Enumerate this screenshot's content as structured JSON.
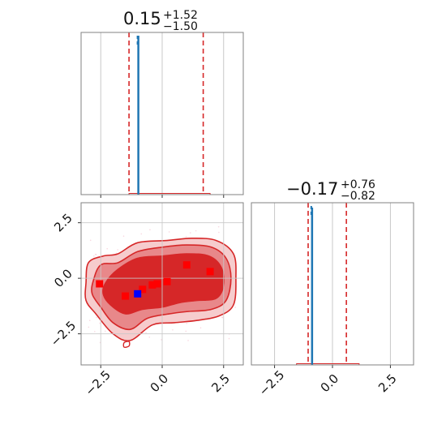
{
  "colors": {
    "truth": "#d62728",
    "median": "#1f77b4",
    "contour_dark": "#d62728",
    "contour_mid": "#e8888a",
    "contour_light": "#f6cccd",
    "best": "#0000ff"
  },
  "chart_data": [
    {
      "type": "histogram",
      "panel": "top-left",
      "title": {
        "value": "0.15",
        "upper": "+1.52",
        "lower": "−1.50"
      },
      "xlim": [
        -3.3,
        3.3
      ],
      "xticks": [
        -2.5,
        0.0,
        2.5
      ],
      "median_x": -0.97,
      "quantile_lines_x": [
        -1.35,
        1.67
      ],
      "red_hist_range": [
        -1.35,
        1.95
      ],
      "grid": true
    },
    {
      "type": "histogram",
      "panel": "bottom-right",
      "title": {
        "value": "−0.17",
        "upper": "+0.76",
        "lower": "−0.82"
      },
      "xlim": [
        -3.5,
        3.5
      ],
      "xticks": [
        -2.5,
        0.0,
        2.5
      ],
      "xtick_labels": [
        "−2.5",
        "0.0",
        "2.5"
      ],
      "median_x": -0.88,
      "quantile_lines_x": [
        -1.05,
        0.6
      ],
      "red_hist_range": [
        -1.55,
        1.15
      ],
      "grid": true
    },
    {
      "type": "scatter",
      "panel": "bottom-left",
      "xlim": [
        -3.3,
        3.3
      ],
      "ylim": [
        -3.9,
        3.4
      ],
      "xticks": [
        -2.5,
        0.0,
        2.5
      ],
      "yticks": [
        -2.5,
        0.0,
        2.5
      ],
      "xtick_labels": [
        "−2.5",
        "0.0",
        "2.5"
      ],
      "ytick_labels": [
        "−2.5",
        "0.0",
        "2.5"
      ],
      "grid": true,
      "contours": true,
      "red_points": [
        {
          "x": -2.55,
          "y": -0.25
        },
        {
          "x": -1.5,
          "y": -0.8
        },
        {
          "x": -0.8,
          "y": -0.5
        },
        {
          "x": -0.4,
          "y": -0.3
        },
        {
          "x": -0.2,
          "y": -0.25
        },
        {
          "x": 0.2,
          "y": -0.15
        },
        {
          "x": 1.0,
          "y": 0.6
        },
        {
          "x": 1.95,
          "y": 0.3
        }
      ],
      "blue_point": {
        "x": -1.0,
        "y": -0.7
      }
    }
  ]
}
